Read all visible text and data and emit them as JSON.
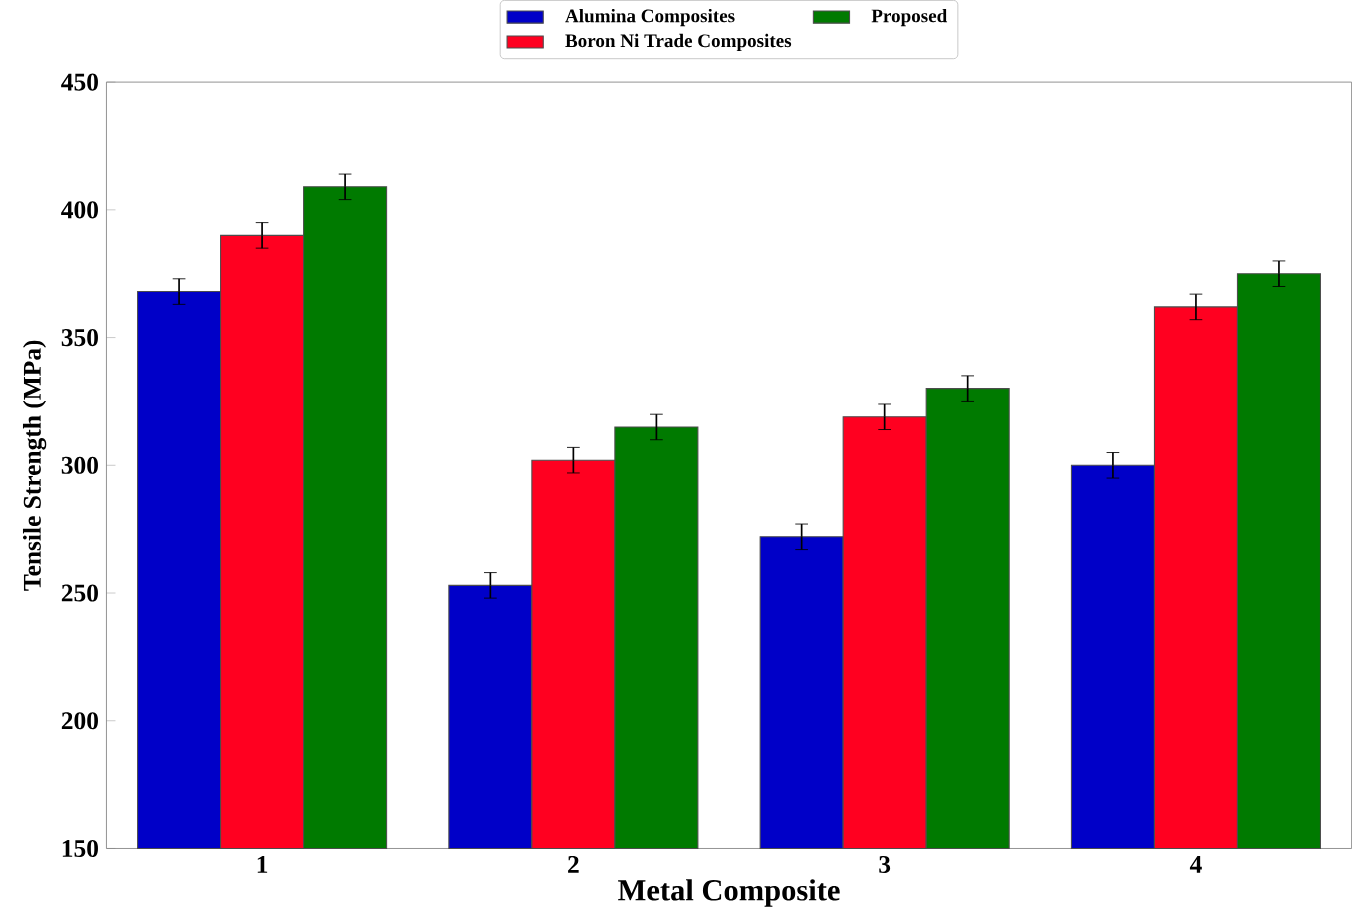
{
  "chart_data": {
    "type": "bar",
    "xlabel": "Metal Composite",
    "ylabel": "Tensile Strength (MPa)",
    "categories": [
      "1",
      "2",
      "3",
      "4"
    ],
    "series": [
      {
        "name": "Alumina Composites",
        "color": "#0000c8",
        "values": [
          368,
          253,
          272,
          300
        ],
        "errors": [
          5,
          5,
          5,
          5
        ]
      },
      {
        "name": "Boron Ni Trade Composites",
        "color": "#ff0020",
        "values": [
          390,
          302,
          319,
          362
        ],
        "errors": [
          5,
          5,
          5,
          5
        ]
      },
      {
        "name": "Proposed",
        "color": "#007a00",
        "values": [
          409,
          315,
          330,
          375
        ],
        "errors": [
          5,
          5,
          5,
          5
        ]
      }
    ],
    "ylim": [
      150,
      450
    ],
    "yticks": [
      150,
      200,
      250,
      300,
      350,
      400,
      450
    ],
    "grid": false,
    "legend": "top"
  }
}
